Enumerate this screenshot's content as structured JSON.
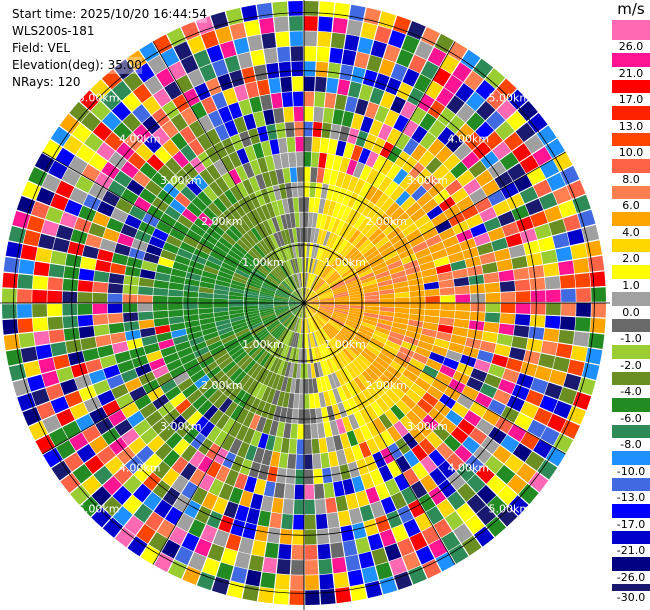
{
  "info": {
    "start_time": "Start time: 2025/10/20 16:44:54",
    "instrument": "WLS200s-181",
    "field": "Field: VEL",
    "elevation": "Elevation(deg): 35.00",
    "nrays": "NRays: 120"
  },
  "colorbar": {
    "unit": "m/s",
    "levels": [
      "26.0",
      "21.0",
      "17.0",
      "13.0",
      "10.0",
      "8.0",
      "6.0",
      "4.0",
      "2.0",
      "1.0",
      "0.0",
      "-1.0",
      "-2.0",
      "-4.0",
      "-6.0",
      "-8.0",
      "-10.0",
      "-13.0",
      "-17.0",
      "-21.0",
      "-26.0",
      "-30.0"
    ],
    "colors": [
      "#ff69b4",
      "#ff1493",
      "#ff0000",
      "#ff2200",
      "#ff4500",
      "#ff6347",
      "#ff7f50",
      "#ffa500",
      "#ffd700",
      "#ffff00",
      "#a0a0a0",
      "#696969",
      "#9acd32",
      "#6b8e23",
      "#228b22",
      "#2e8b57",
      "#1e90ff",
      "#4169e1",
      "#0000ff",
      "#0000cd",
      "#000080",
      "#191970"
    ]
  },
  "chart_data": {
    "type": "heatmap",
    "subtype": "ppi-polar",
    "nrays": 120,
    "value_range": [
      -30,
      30
    ],
    "range_rings_km": [
      1,
      2,
      3,
      4,
      5
    ],
    "range_ring_labels": [
      "1.00km",
      "2.00km",
      "3.00km",
      "4.00km",
      "5.00km"
    ],
    "max_range_km": 5.2,
    "gates": 20,
    "azimuth_lines_deg": [
      0,
      30,
      60,
      90,
      120,
      150,
      180,
      210,
      240,
      270,
      300,
      330
    ]
  }
}
